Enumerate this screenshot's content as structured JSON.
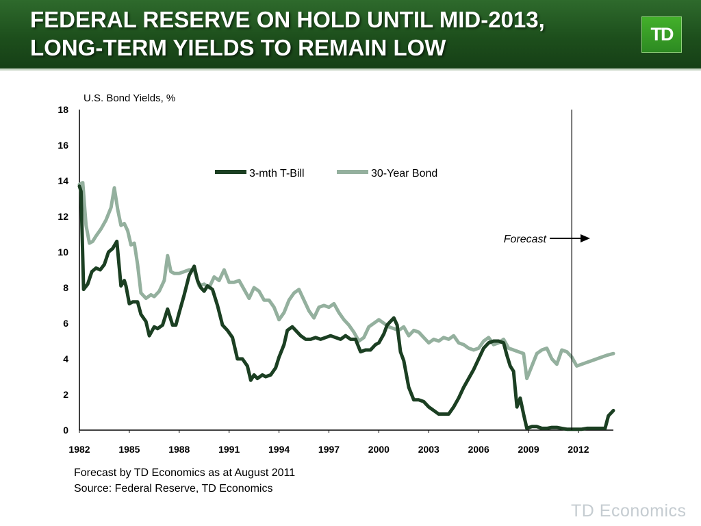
{
  "header": {
    "title_line1": "FEDERAL RESERVE ON HOLD UNTIL MID-2013,",
    "title_line2": "LONG-TERM YIELDS TO REMAIN LOW",
    "logo_text": "TD",
    "colors": {
      "band": "#1d4f1c",
      "logo": "#43b02a"
    }
  },
  "chart_data": {
    "type": "line",
    "title": "",
    "ylabel": "U.S. Bond Yields, %",
    "xlabel": "",
    "ylim": [
      0,
      18
    ],
    "xlim": [
      1982,
      2014.1
    ],
    "y_ticks": [
      "0",
      "2",
      "4",
      "6",
      "8",
      "10",
      "12",
      "14",
      "16",
      "18"
    ],
    "x_ticks": [
      "1982",
      "1985",
      "1988",
      "1991",
      "1994",
      "1997",
      "2000",
      "2003",
      "2006",
      "2009",
      "2012"
    ],
    "legend_position": "top",
    "grid": false,
    "forecast_start": 2011.6,
    "forecast_label": "Forecast",
    "series": [
      {
        "name": "3-mth T-Bill",
        "color": "#1b3f22",
        "x": [
          1982.0,
          1982.1,
          1982.25,
          1982.5,
          1982.75,
          1983.0,
          1983.25,
          1983.5,
          1983.75,
          1984.0,
          1984.25,
          1984.5,
          1984.7,
          1984.8,
          1985.0,
          1985.2,
          1985.5,
          1985.7,
          1986.0,
          1986.2,
          1986.5,
          1986.7,
          1987.0,
          1987.3,
          1987.6,
          1987.8,
          1988.0,
          1988.3,
          1988.6,
          1988.9,
          1989.1,
          1989.3,
          1989.5,
          1989.7,
          1990.0,
          1990.3,
          1990.6,
          1990.9,
          1991.2,
          1991.5,
          1991.8,
          1992.1,
          1992.3,
          1992.5,
          1992.7,
          1993.0,
          1993.2,
          1993.5,
          1993.8,
          1994.0,
          1994.3,
          1994.5,
          1994.8,
          1995.0,
          1995.3,
          1995.6,
          1995.9,
          1996.2,
          1996.5,
          1996.8,
          1997.1,
          1997.4,
          1997.7,
          1998.0,
          1998.3,
          1998.6,
          1998.9,
          1999.2,
          1999.5,
          1999.8,
          2000.0,
          2000.3,
          2000.5,
          2000.7,
          2000.9,
          2001.1,
          2001.3,
          2001.5,
          2001.8,
          2002.1,
          2002.4,
          2002.7,
          2003.0,
          2003.3,
          2003.6,
          2003.9,
          2004.2,
          2004.5,
          2004.8,
          2005.1,
          2005.4,
          2005.7,
          2006.0,
          2006.3,
          2006.6,
          2006.9,
          2007.2,
          2007.5,
          2007.7,
          2007.9,
          2008.1,
          2008.3,
          2008.5,
          2008.7,
          2008.9,
          2009.2,
          2009.5,
          2009.8,
          2010.1,
          2010.4,
          2010.7,
          2011.0,
          2011.3,
          2011.6,
          2011.9,
          2012.2,
          2012.5,
          2012.8,
          2013.1,
          2013.4,
          2013.6,
          2013.8,
          2014.1
        ],
        "values": [
          13.7,
          13.4,
          7.9,
          8.2,
          8.9,
          9.1,
          9.0,
          9.3,
          10.0,
          10.2,
          10.6,
          8.1,
          8.4,
          8.1,
          7.1,
          7.2,
          7.2,
          6.5,
          6.1,
          5.3,
          5.8,
          5.7,
          5.9,
          6.8,
          5.9,
          5.9,
          6.6,
          7.6,
          8.7,
          9.2,
          8.4,
          8.0,
          7.8,
          8.1,
          7.9,
          7.0,
          5.9,
          5.6,
          5.2,
          4.0,
          4.0,
          3.6,
          2.8,
          3.1,
          2.9,
          3.1,
          3.0,
          3.1,
          3.5,
          4.1,
          4.8,
          5.6,
          5.8,
          5.6,
          5.3,
          5.1,
          5.1,
          5.2,
          5.1,
          5.2,
          5.3,
          5.2,
          5.1,
          5.3,
          5.1,
          5.1,
          4.4,
          4.5,
          4.5,
          4.8,
          4.9,
          5.4,
          5.9,
          6.1,
          6.3,
          5.9,
          4.4,
          3.9,
          2.4,
          1.7,
          1.7,
          1.6,
          1.3,
          1.1,
          0.9,
          0.9,
          0.9,
          1.3,
          1.8,
          2.4,
          2.9,
          3.4,
          4.0,
          4.6,
          4.9,
          5.0,
          5.0,
          4.9,
          4.2,
          3.6,
          3.3,
          1.3,
          1.8,
          0.9,
          0.1,
          0.2,
          0.2,
          0.1,
          0.1,
          0.15,
          0.15,
          0.1,
          0.05,
          0.05,
          0.05,
          0.05,
          0.1,
          0.1,
          0.1,
          0.1,
          0.1,
          0.8,
          1.1
        ]
      },
      {
        "name": "30-Year Bond",
        "color": "#94b09e",
        "x": [
          1982.0,
          1982.2,
          1982.4,
          1982.6,
          1982.8,
          1983.0,
          1983.3,
          1983.6,
          1983.9,
          1984.1,
          1984.3,
          1984.5,
          1984.7,
          1984.9,
          1985.1,
          1985.3,
          1985.5,
          1985.7,
          1986.0,
          1986.3,
          1986.5,
          1986.8,
          1987.1,
          1987.3,
          1987.5,
          1987.7,
          1988.0,
          1988.3,
          1988.6,
          1988.9,
          1989.2,
          1989.5,
          1989.8,
          1990.1,
          1990.4,
          1990.7,
          1991.0,
          1991.3,
          1991.6,
          1991.9,
          1992.2,
          1992.5,
          1992.8,
          1993.1,
          1993.4,
          1993.7,
          1994.0,
          1994.3,
          1994.6,
          1994.9,
          1995.2,
          1995.5,
          1995.8,
          1996.1,
          1996.4,
          1996.7,
          1997.0,
          1997.3,
          1997.6,
          1997.9,
          1998.2,
          1998.5,
          1998.8,
          1999.1,
          1999.4,
          1999.7,
          2000.0,
          2000.3,
          2000.6,
          2000.9,
          2001.2,
          2001.5,
          2001.8,
          2002.1,
          2002.4,
          2002.7,
          2003.0,
          2003.3,
          2003.6,
          2003.9,
          2004.2,
          2004.5,
          2004.8,
          2005.1,
          2005.4,
          2005.7,
          2006.0,
          2006.3,
          2006.6,
          2006.9,
          2007.2,
          2007.5,
          2007.8,
          2008.1,
          2008.4,
          2008.7,
          2008.9,
          2009.2,
          2009.5,
          2009.8,
          2010.1,
          2010.4,
          2010.7,
          2011.0,
          2011.3,
          2011.6,
          2011.9,
          2012.2,
          2012.5,
          2012.8,
          2013.1,
          2013.4,
          2013.7,
          2014.1
        ],
        "values": [
          13.8,
          13.9,
          11.5,
          10.5,
          10.6,
          10.9,
          11.3,
          11.8,
          12.5,
          13.6,
          12.4,
          11.5,
          11.6,
          11.2,
          10.4,
          10.5,
          9.3,
          7.7,
          7.4,
          7.6,
          7.5,
          7.8,
          8.4,
          9.8,
          8.9,
          8.8,
          8.8,
          8.9,
          9.0,
          9.0,
          8.1,
          8.2,
          8.0,
          8.6,
          8.4,
          9.0,
          8.3,
          8.3,
          8.4,
          7.9,
          7.4,
          8.0,
          7.8,
          7.3,
          7.3,
          6.9,
          6.2,
          6.6,
          7.3,
          7.7,
          7.9,
          7.3,
          6.7,
          6.3,
          6.9,
          7.0,
          6.9,
          7.1,
          6.6,
          6.2,
          5.9,
          5.5,
          5.0,
          5.2,
          5.8,
          6.0,
          6.2,
          6.0,
          5.8,
          5.7,
          5.6,
          5.8,
          5.3,
          5.6,
          5.5,
          5.2,
          4.9,
          5.1,
          5.0,
          5.2,
          5.1,
          5.3,
          4.9,
          4.8,
          4.6,
          4.5,
          4.6,
          5.0,
          5.2,
          4.8,
          4.9,
          5.1,
          4.6,
          4.5,
          4.4,
          4.3,
          2.9,
          3.6,
          4.3,
          4.5,
          4.6,
          4.0,
          3.7,
          4.5,
          4.4,
          4.1,
          3.6,
          3.7,
          3.8,
          3.9,
          4.0,
          4.1,
          4.2,
          4.3
        ]
      }
    ]
  },
  "footnotes": {
    "line1": "Forecast by TD Economics as at August 2011",
    "line2": "Source: Federal Reserve, TD Economics"
  },
  "brand_footer": "TD Economics"
}
